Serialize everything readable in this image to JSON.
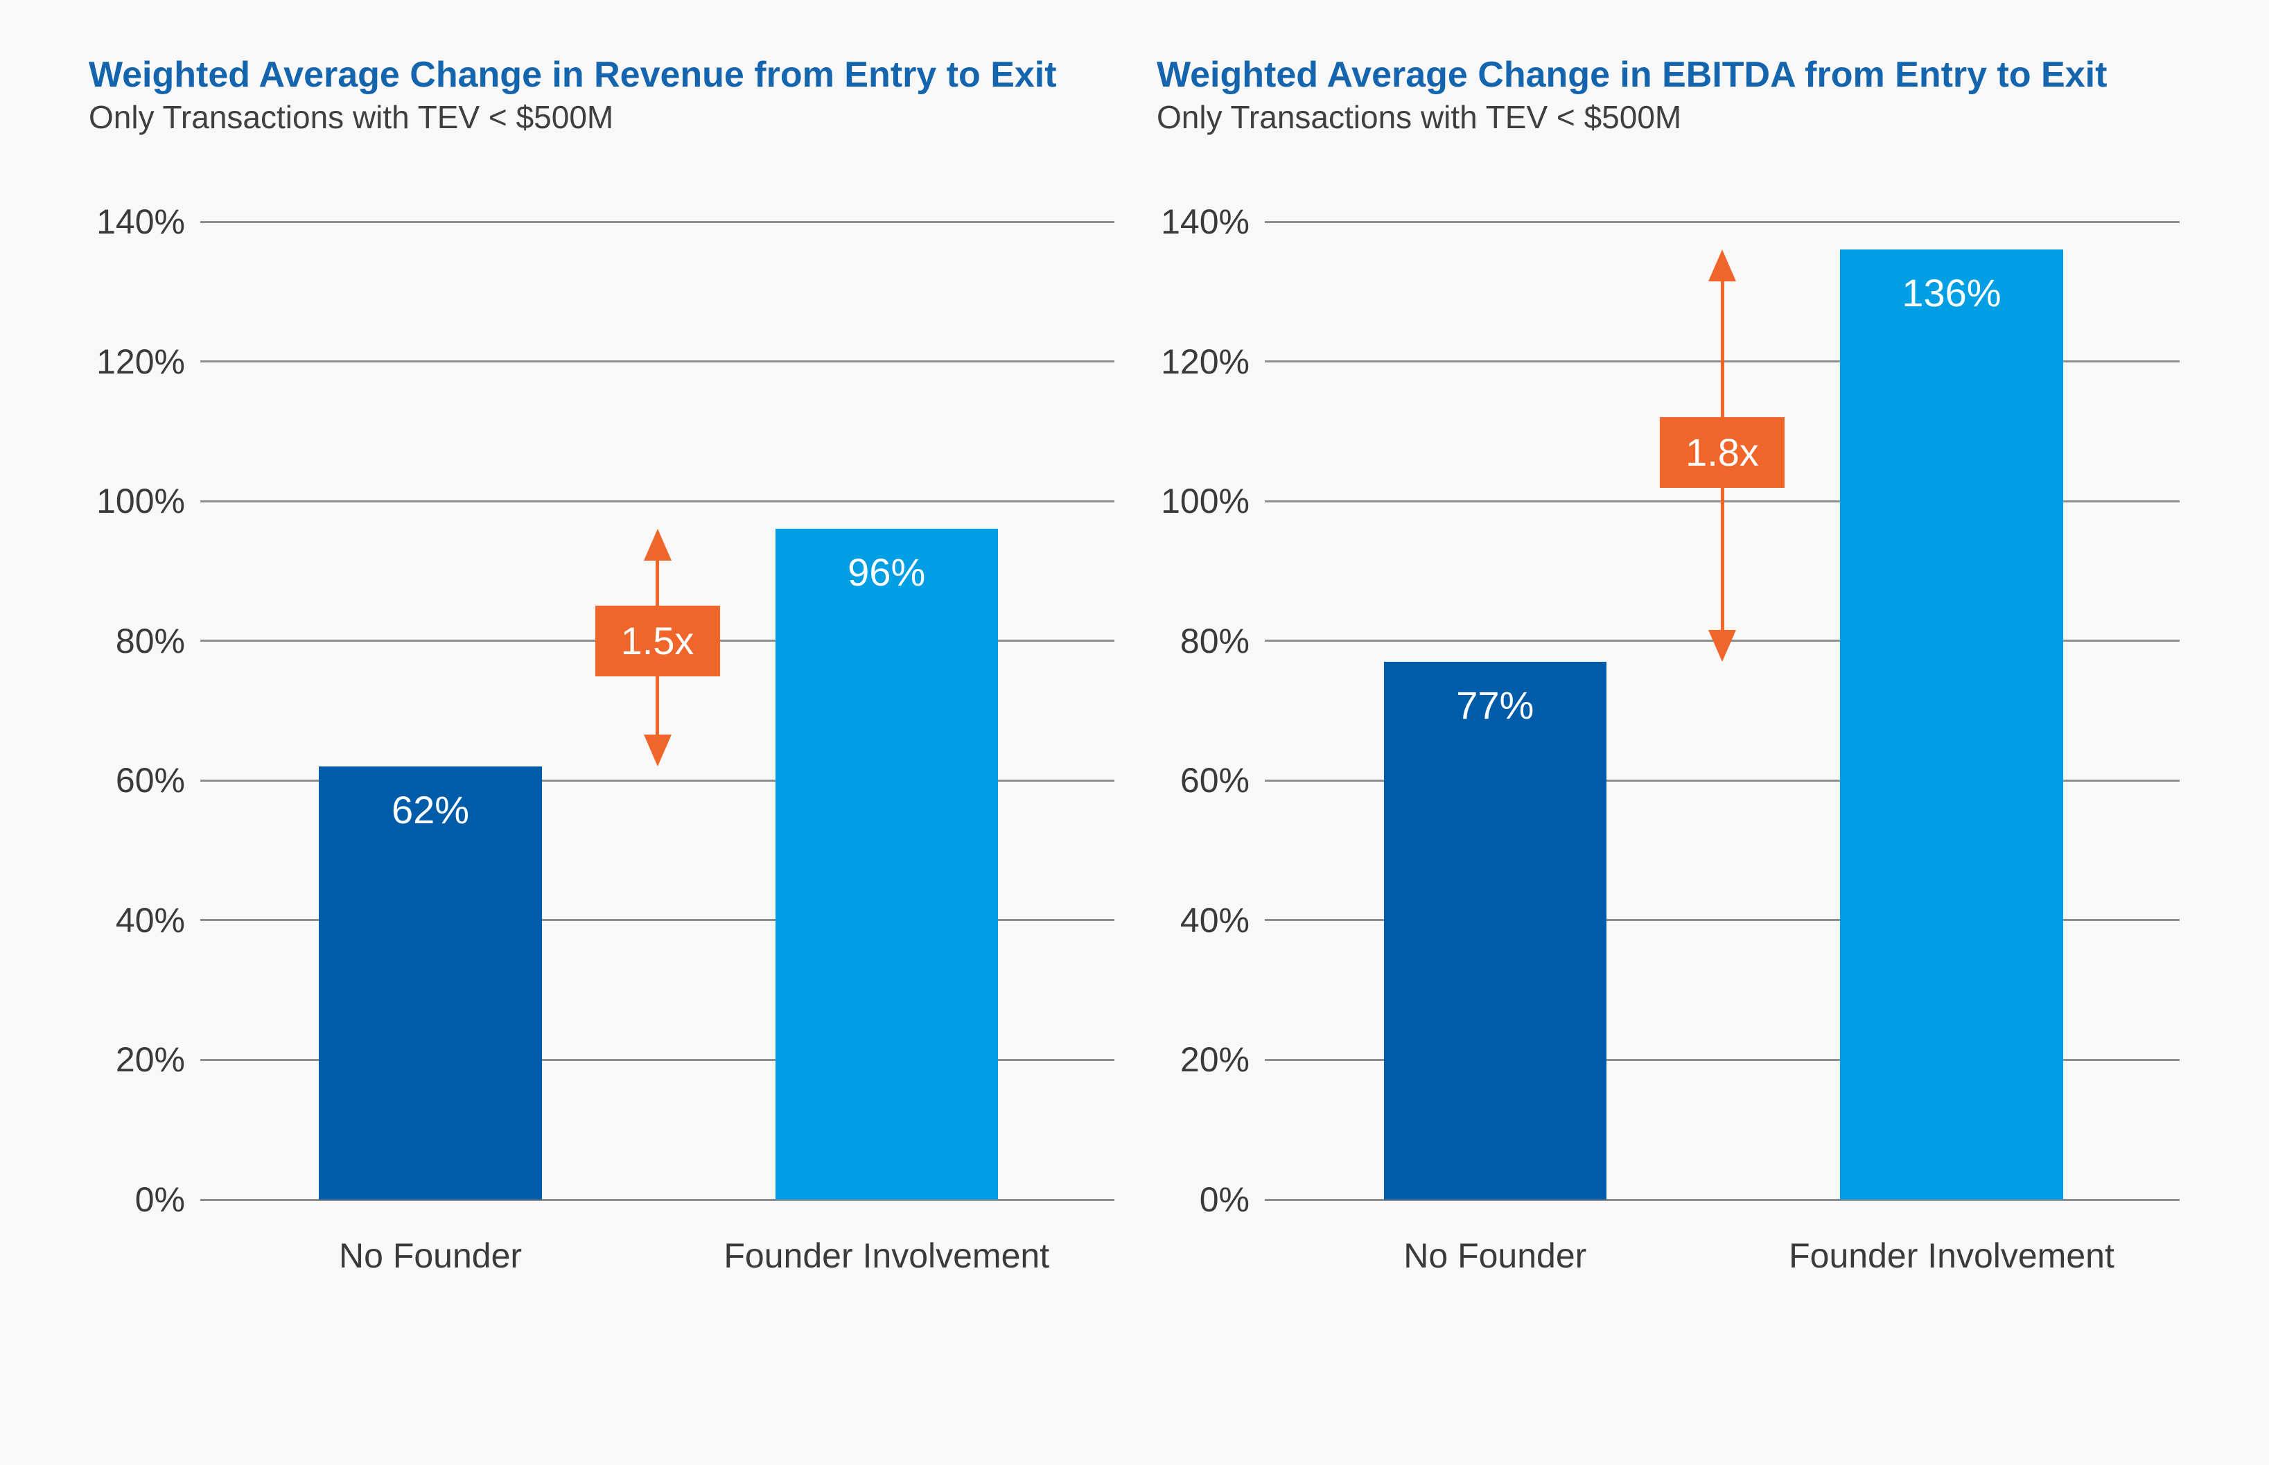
{
  "colors": {
    "background": "#f8f8f8",
    "title_blue": "#1565ae",
    "subtitle_gray": "#3f3f3f",
    "axis_text": "#3a3a3a",
    "gridline_gray": "#8e8e8e",
    "dark_blue_bar": "#005ca9",
    "light_blue_bar": "#009fe3",
    "accent_orange": "#f0662a",
    "bar_label_white": "#ffffff"
  },
  "chart_data": [
    {
      "type": "bar",
      "title": "Weighted Average Change in Revenue from Entry to Exit",
      "subtitle": "Only Transactions with TEV < $500M",
      "categories": [
        "No Founder",
        "Founder Involvement"
      ],
      "series": [
        {
          "name": "Weighted Average Change in Revenue",
          "values": [
            62,
            96
          ]
        }
      ],
      "value_labels": [
        "62%",
        "96%"
      ],
      "bar_colors": [
        "#005ca9",
        "#009fe3"
      ],
      "annotation": {
        "label": "1.5x",
        "from": 62,
        "to": 96,
        "label_center": 80
      },
      "y_axis": {
        "min": 0,
        "max": 140,
        "step": 20,
        "ticks": [
          "140%",
          "120%",
          "100%",
          "80%",
          "60%",
          "40%",
          "20%",
          "0%"
        ]
      },
      "grid": true,
      "legend": false
    },
    {
      "type": "bar",
      "title": "Weighted Average Change in EBITDA from Entry to Exit",
      "subtitle": "Only Transactions with TEV < $500M",
      "categories": [
        "No Founder",
        "Founder Involvement"
      ],
      "series": [
        {
          "name": "Weighted Average Change in EBITDA",
          "values": [
            77,
            136
          ]
        }
      ],
      "value_labels": [
        "77%",
        "136%"
      ],
      "bar_colors": [
        "#005ca9",
        "#009fe3"
      ],
      "annotation": {
        "label": "1.8x",
        "from": 77,
        "to": 136,
        "label_center": 107
      },
      "y_axis": {
        "min": 0,
        "max": 140,
        "step": 20,
        "ticks": [
          "140%",
          "120%",
          "100%",
          "80%",
          "60%",
          "40%",
          "20%",
          "0%"
        ]
      },
      "grid": true,
      "legend": false
    }
  ]
}
